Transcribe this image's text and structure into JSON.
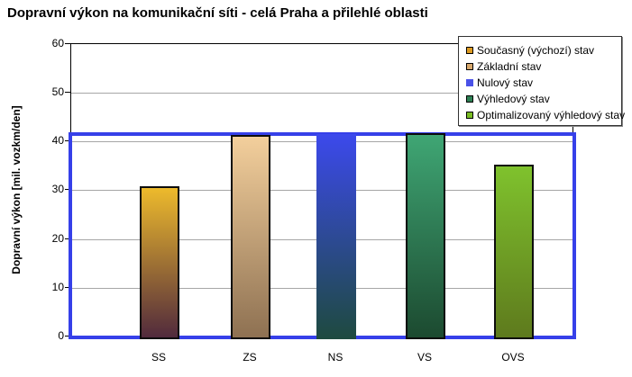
{
  "title": "Dopravní výkon na komunikační síti - celá Praha a přilehlé oblasti",
  "y_axis": {
    "title": "Dopravní výkon [mil. vozkm/den]",
    "tick_labels": [
      "0",
      "10",
      "20",
      "30",
      "40",
      "50",
      "60"
    ]
  },
  "x_axis": {
    "labels": [
      "SS",
      "ZS",
      "NS",
      "VS",
      "OVS"
    ]
  },
  "legend": {
    "items": [
      {
        "label": "Současný (výchozí) stav",
        "key_color": "#dd9b22",
        "key_border": true
      },
      {
        "label": "Základní stav",
        "key_color": "#d8a96e",
        "key_border": true
      },
      {
        "label": "Nulový stav",
        "key_color": "#4a52e8",
        "key_border": false
      },
      {
        "label": "Výhledový stav",
        "key_color": "#2e8054",
        "key_border": true
      },
      {
        "label": "Optimalizovaný výhledový stav",
        "key_color": "#7abd24",
        "key_border": true
      }
    ]
  },
  "chart_data": {
    "type": "bar",
    "title": "Dopravní výkon na komunikační síti - celá Praha a přilehlé oblasti",
    "categories": [
      "SS",
      "ZS",
      "NS",
      "VS",
      "OVS"
    ],
    "values": [
      30.9,
      41.3,
      41.6,
      41.8,
      35.2
    ],
    "series_names": [
      "Současný (výchozí) stav",
      "Základní stav",
      "Nulový stav",
      "Výhledový stav",
      "Optimalizovaný výhledový stav"
    ],
    "xlabel": "",
    "ylabel": "Dopravní výkon [mil. vozkm/den]",
    "ylim": [
      0,
      60
    ],
    "yticks": [
      0,
      10,
      20,
      30,
      40,
      50,
      60
    ],
    "grid": "horizontal",
    "legend_position": "top-right",
    "reference_frame": {
      "value": 41.6,
      "color": "#3640e9",
      "note": "thick blue rectangle framing plot width from 0 up to the Nulový stav level"
    },
    "bar_colors": [
      {
        "top": "#edba2c",
        "bottom": "#512a3c",
        "border": true
      },
      {
        "top": "#f3cf9c",
        "bottom": "#8e7152",
        "border": true
      },
      {
        "top": "#3c49ec",
        "bottom": "#1e4a3f",
        "border": false
      },
      {
        "top": "#3fa674",
        "bottom": "#1c4a30",
        "border": true
      },
      {
        "top": "#7fc22d",
        "bottom": "#5e7a1d",
        "border": true
      }
    ]
  }
}
